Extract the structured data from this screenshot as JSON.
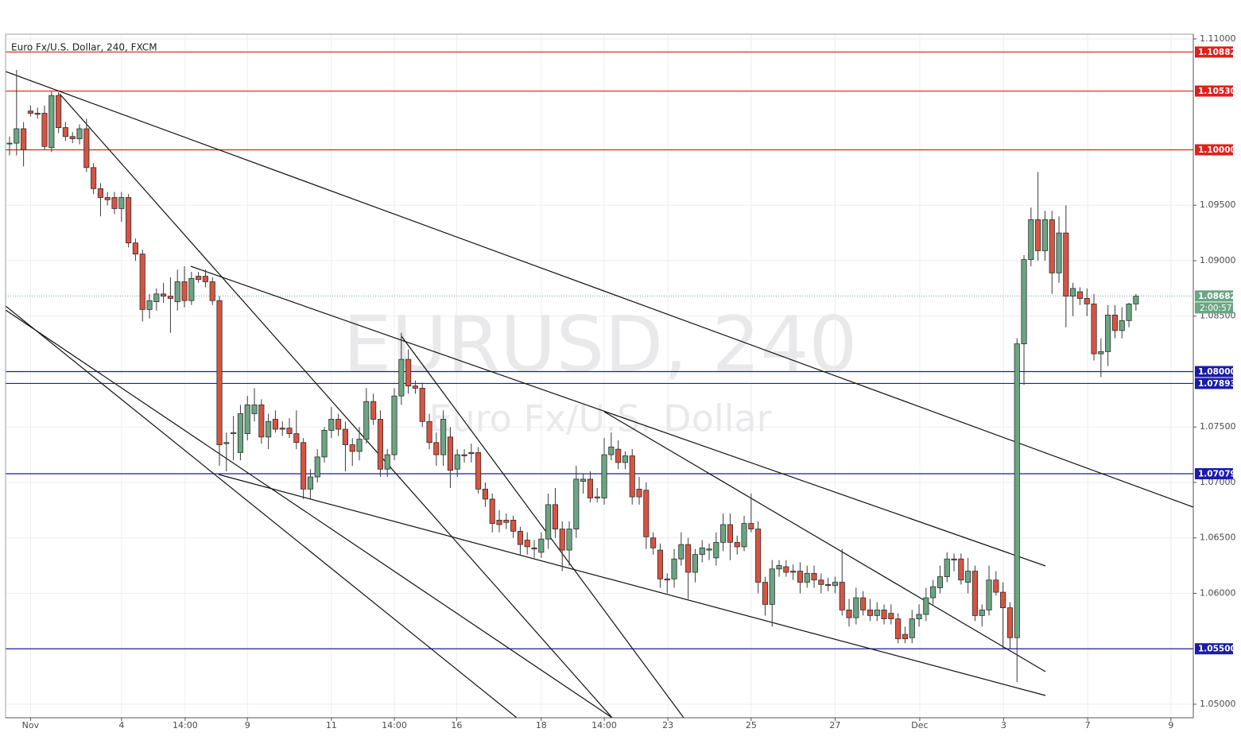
{
  "chart_data": {
    "type": "candlestick",
    "title": "Euro Fx/U.S. Dollar, 240, FXCM",
    "watermark": "EURUSD, 240",
    "watermark_subtitle": "Euro Fx/U.S. Dollar",
    "up_color": "#6ba583",
    "down_color": "#d75442",
    "grid": true,
    "open": [
      1.1006,
      1.1006,
      1.1019,
      1.1035,
      1.1033,
      1.1033,
      1.1002,
      1.1049,
      1.102,
      1.1012,
      1.101,
      1.1019,
      1.0984,
      1.0965,
      1.0957,
      1.0957,
      1.0947,
      1.0957,
      1.0916,
      1.0906,
      1.0856,
      1.0863,
      1.087,
      1.0868,
      1.0863,
      1.0881,
      1.0864,
      1.0886,
      1.0886,
      1.0881,
      1.0864,
      1.0735,
      1.0744,
      1.0727,
      1.0744,
      1.0762,
      1.077,
      1.0741,
      1.0757,
      1.0749,
      1.0749,
      1.0744,
      1.0736,
      1.0694,
      1.0705,
      1.0723,
      1.0747,
      1.0757,
      1.0748,
      1.0734,
      1.0728,
      1.0739,
      1.0773,
      1.0757,
      1.0712,
      1.0725,
      1.0778,
      1.0811,
      1.0787,
      1.0785,
      1.0755,
      1.0736,
      1.0725,
      1.0741,
      1.0712,
      1.0725,
      1.0727,
      1.0727,
      1.0694,
      1.0685,
      1.0666,
      1.0666,
      1.0666,
      1.0656,
      1.0648,
      1.0641,
      1.0637,
      1.0649,
      1.068,
      1.0658,
      1.0639,
      1.0658,
      1.0701,
      1.0703,
      1.0686,
      1.0686,
      1.0725,
      1.073,
      1.0718,
      1.0724,
      1.0694,
      1.0693,
      1.065,
      1.0639,
      1.0613,
      1.0613,
      1.0631,
      1.0644,
      1.0619,
      1.0635,
      1.0639,
      1.0632,
      1.0646,
      1.0662,
      1.0646,
      1.0642,
      1.0663,
      1.0658,
      1.061,
      1.059,
      1.0622,
      1.0624,
      1.062,
      1.062,
      1.061,
      1.0618,
      1.0612,
      1.0608,
      1.0607,
      1.061,
      1.0585,
      1.0578,
      1.0596,
      1.0585,
      1.058,
      1.0585,
      1.0582,
      1.0577,
      1.0563,
      1.056,
      1.0577,
      1.0581,
      1.0596,
      1.0605,
      1.0615,
      1.0631,
      1.0631,
      1.061,
      1.062,
      1.058,
      1.0585,
      1.0612,
      1.0601,
      1.0587,
      1.056,
      1.0825,
      1.0901,
      1.0937,
      1.0909,
      1.0937,
      1.0889,
      1.0925,
      1.0868,
      1.0872,
      1.0866,
      1.0861,
      1.0816,
      1.0818,
      1.0851,
      1.0837,
      1.0846,
      1.0861
    ],
    "high": [
      1.1012,
      1.1072,
      1.1025,
      1.104,
      1.1038,
      1.104,
      1.1053,
      1.1052,
      1.1025,
      1.1016,
      1.1023,
      1.1028,
      1.0988,
      1.097,
      1.0962,
      1.0962,
      1.0962,
      1.096,
      1.092,
      1.091,
      1.087,
      1.0875,
      1.088,
      1.0885,
      1.0892,
      1.0895,
      1.089,
      1.089,
      1.0892,
      1.0885,
      1.0868,
      1.0745,
      1.076,
      1.077,
      1.0778,
      1.0785,
      1.0775,
      1.0762,
      1.0765,
      1.0755,
      1.0758,
      1.0765,
      1.074,
      1.0712,
      1.073,
      1.075,
      1.0768,
      1.0762,
      1.0755,
      1.074,
      1.075,
      1.0785,
      1.078,
      1.0765,
      1.073,
      1.0785,
      1.0835,
      1.082,
      1.0792,
      1.079,
      1.0762,
      1.0745,
      1.0765,
      1.075,
      1.073,
      1.073,
      1.0735,
      1.0732,
      1.07,
      1.069,
      1.0675,
      1.0672,
      1.067,
      1.066,
      1.0655,
      1.0648,
      1.0655,
      1.069,
      1.0695,
      1.0665,
      1.0665,
      1.0715,
      1.0708,
      1.071,
      1.0695,
      1.074,
      1.0745,
      1.0738,
      1.0728,
      1.073,
      1.0705,
      1.07,
      1.0655,
      1.0645,
      1.0618,
      1.064,
      1.0655,
      1.065,
      1.064,
      1.0648,
      1.0645,
      1.0655,
      1.0672,
      1.0672,
      1.0652,
      1.067,
      1.069,
      1.0665,
      1.0615,
      1.063,
      1.063,
      1.063,
      1.0626,
      1.0628,
      1.0625,
      1.0625,
      1.0618,
      1.0614,
      1.0615,
      1.064,
      1.0595,
      1.0605,
      1.0602,
      1.0595,
      1.0592,
      1.059,
      1.059,
      1.0582,
      1.057,
      1.0585,
      1.059,
      1.0605,
      1.0612,
      1.0625,
      1.0637,
      1.0636,
      1.0636,
      1.0632,
      1.0625,
      1.059,
      1.0625,
      1.062,
      1.061,
      1.0592,
      1.083,
      1.0905,
      1.0948,
      1.098,
      1.0945,
      1.0945,
      1.094,
      1.095,
      1.088,
      1.0876,
      1.0875,
      1.087,
      1.083,
      1.086,
      1.086,
      1.0858,
      1.0862,
      1.087
    ],
    "low": [
      1.0995,
      1.0995,
      1.0985,
      1.103,
      1.1028,
      1.1,
      1.0998,
      1.1015,
      1.1008,
      1.1006,
      1.1005,
      1.098,
      1.096,
      1.094,
      1.095,
      1.0942,
      1.0935,
      1.0912,
      1.09,
      1.0845,
      1.0848,
      1.0855,
      1.0862,
      1.0835,
      1.0855,
      1.0858,
      1.086,
      1.088,
      1.0876,
      1.086,
      1.0715,
      1.071,
      1.072,
      1.072,
      1.0738,
      1.0755,
      1.0735,
      1.073,
      1.0745,
      1.0742,
      1.074,
      1.073,
      1.0685,
      1.0685,
      1.07,
      1.0718,
      1.074,
      1.0742,
      1.071,
      1.0715,
      1.072,
      1.0735,
      1.0752,
      1.0705,
      1.0705,
      1.072,
      1.077,
      1.078,
      1.078,
      1.075,
      1.073,
      1.0715,
      1.0715,
      1.0695,
      1.0705,
      1.0718,
      1.0718,
      1.069,
      1.0678,
      1.0655,
      1.0655,
      1.0658,
      1.065,
      1.0635,
      1.0635,
      1.0632,
      1.0632,
      1.064,
      1.065,
      1.062,
      1.0625,
      1.065,
      1.069,
      1.0682,
      1.0682,
      1.068,
      1.072,
      1.0712,
      1.0712,
      1.068,
      1.068,
      1.064,
      1.0635,
      1.0605,
      1.06,
      1.0605,
      1.0625,
      1.0595,
      1.061,
      1.0628,
      1.063,
      1.0625,
      1.0638,
      1.063,
      1.0635,
      1.0638,
      1.0655,
      1.06,
      1.058,
      1.057,
      1.0615,
      1.0615,
      1.0612,
      1.06,
      1.0605,
      1.0605,
      1.06,
      1.0602,
      1.06,
      1.058,
      1.057,
      1.0572,
      1.058,
      1.0575,
      1.0575,
      1.0572,
      1.0572,
      1.0555,
      1.0555,
      1.0555,
      1.057,
      1.0575,
      1.059,
      1.06,
      1.061,
      1.062,
      1.0608,
      1.06,
      1.0575,
      1.057,
      1.058,
      1.0598,
      1.055,
      1.055,
      1.052,
      1.0788,
      1.0895,
      1.09,
      1.09,
      1.087,
      1.088,
      1.084,
      1.085,
      1.086,
      1.085,
      1.081,
      1.0795,
      1.0805,
      1.083,
      1.083,
      1.084,
      1.0855
    ],
    "close": [
      1.1006,
      1.1019,
      1.1,
      1.1033,
      1.1032,
      1.1003,
      1.1049,
      1.102,
      1.1012,
      1.101,
      1.1019,
      1.0984,
      1.0965,
      1.0957,
      1.0955,
      1.0947,
      1.0957,
      1.0916,
      1.0906,
      1.0856,
      1.0864,
      1.087,
      1.0868,
      1.0866,
      1.0881,
      1.0864,
      1.0884,
      1.0883,
      1.0881,
      1.0864,
      1.0734,
      1.0736,
      1.0745,
      1.0762,
      1.077,
      1.077,
      1.0741,
      1.0755,
      1.0748,
      1.0748,
      1.0744,
      1.0736,
      1.0694,
      1.0705,
      1.0723,
      1.0747,
      1.0757,
      1.0748,
      1.0734,
      1.0728,
      1.0739,
      1.0773,
      1.0757,
      1.0712,
      1.0725,
      1.0778,
      1.0811,
      1.0787,
      1.0785,
      1.0755,
      1.0736,
      1.0725,
      1.0757,
      1.0711,
      1.0725,
      1.0724,
      1.0726,
      1.0694,
      1.0685,
      1.0663,
      1.0662,
      1.0664,
      1.0656,
      1.0644,
      1.0642,
      1.064,
      1.0649,
      1.068,
      1.0658,
      1.0639,
      1.0658,
      1.0703,
      1.0703,
      1.0686,
      1.0687,
      1.0725,
      1.0732,
      1.0718,
      1.0724,
      1.0687,
      1.0687,
      1.0651,
      1.0641,
      1.0613,
      1.0612,
      1.0631,
      1.0644,
      1.0619,
      1.0635,
      1.0641,
      1.064,
      1.0646,
      1.0662,
      1.0646,
      1.0642,
      1.0663,
      1.0658,
      1.061,
      1.059,
      1.0622,
      1.0625,
      1.0619,
      1.0619,
      1.061,
      1.0618,
      1.0612,
      1.0608,
      1.0607,
      1.061,
      1.0585,
      1.0578,
      1.0596,
      1.0585,
      1.058,
      1.0585,
      1.0577,
      1.0577,
      1.0559,
      1.0559,
      1.0577,
      1.0581,
      1.0596,
      1.0606,
      1.0615,
      1.0631,
      1.063,
      1.0612,
      1.062,
      1.058,
      1.0585,
      1.0612,
      1.0601,
      1.0587,
      1.056,
      1.0825,
      1.0901,
      1.0937,
      1.0909,
      1.0937,
      1.0889,
      1.0925,
      1.0868,
      1.0875,
      1.0866,
      1.0861,
      1.0816,
      1.0818,
      1.0851,
      1.0837,
      1.0846,
      1.0861,
      1.0868
    ],
    "xlim": [
      -0.57,
      169.2
    ],
    "xticks": [
      {
        "value": 3.0,
        "label": "Nov"
      },
      {
        "value": 16.0,
        "label": "4"
      },
      {
        "value": 25.1,
        "label": "14:00"
      },
      {
        "value": 34.0,
        "label": "9"
      },
      {
        "value": 46.0,
        "label": "11"
      },
      {
        "value": 55.0,
        "label": "14:00"
      },
      {
        "value": 63.9,
        "label": "16"
      },
      {
        "value": 76.0,
        "label": "18"
      },
      {
        "value": 85.0,
        "label": "14:00"
      },
      {
        "value": 94.1,
        "label": "23"
      },
      {
        "value": 106.0,
        "label": "25"
      },
      {
        "value": 118.0,
        "label": "27"
      },
      {
        "value": 130.1,
        "label": "Dec"
      },
      {
        "value": 142.1,
        "label": "3"
      },
      {
        "value": 154.1,
        "label": "7"
      },
      {
        "value": 166.0,
        "label": "9"
      }
    ],
    "ylim": [
      1.04878,
      1.11043
    ],
    "yticks": [
      {
        "value": 1.11,
        "label": "1.11000"
      },
      {
        "value": 1.095,
        "label": "1.09500"
      },
      {
        "value": 1.09,
        "label": "1.09000"
      },
      {
        "value": 1.085,
        "label": "1.08500"
      },
      {
        "value": 1.075,
        "label": "1.07500"
      },
      {
        "value": 1.07,
        "label": "1.07000"
      },
      {
        "value": 1.065,
        "label": "1.06500"
      },
      {
        "value": 1.06,
        "label": "1.06000"
      },
      {
        "value": 1.05,
        "label": "1.05000"
      }
    ],
    "levels": [
      {
        "value": 1.10882,
        "label": "1.10882",
        "color": "#e0201b"
      },
      {
        "value": 1.1053,
        "label": "1.10530",
        "color": "#e0201b"
      },
      {
        "value": 1.1,
        "label": "1.10000",
        "color": "#e0201b"
      },
      {
        "value": 1.08,
        "label": "1.08000",
        "color": "#1c1ca8"
      },
      {
        "value": 1.07893,
        "label": "1.07893",
        "color": "#1c1ca8"
      },
      {
        "value": 1.07079,
        "label": "1.07079",
        "color": "#1c1ca8"
      },
      {
        "value": 1.055,
        "label": "1.05500",
        "color": "#1c1ca8"
      }
    ],
    "last_price": {
      "value": 1.08682,
      "label": "1.08682"
    },
    "countdown": "2:00:57"
  }
}
